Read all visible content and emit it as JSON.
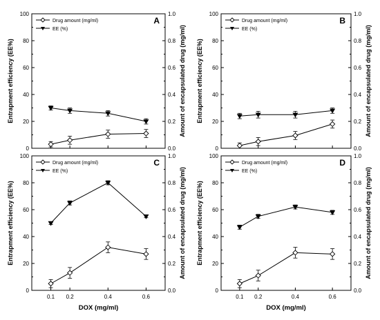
{
  "chart_data": [
    {
      "type": "line",
      "panel_label": "A",
      "x": [
        0.1,
        0.2,
        0.4,
        0.6
      ],
      "xlim": [
        0,
        0.7
      ],
      "ylim": [
        0,
        100
      ],
      "y2lim": [
        0,
        1.0
      ],
      "left_ticks": [
        "0",
        "20",
        "40",
        "60",
        "80",
        "100"
      ],
      "right_ticks": [
        "0.0",
        "0.2",
        "0.4",
        "0.6",
        "0.8",
        "1.0"
      ],
      "x_ticks": [],
      "ylabel": "Entrapment efficiency (EE%)",
      "y2label": "Amount of encapsulated drug (mg/ml)",
      "xlabel": "",
      "legend_placement": "top-left",
      "series": [
        {
          "name": "Drug amount (mg/ml)",
          "axis": "right",
          "marker": "open-diamond",
          "values": [
            0.03,
            0.06,
            0.105,
            0.11
          ],
          "errors": [
            0.02,
            0.03,
            0.03,
            0.03
          ]
        },
        {
          "name": "EE (%)",
          "axis": "left",
          "marker": "filled-triangle-down",
          "values": [
            30,
            28,
            26,
            20
          ],
          "errors": [
            1.5,
            2,
            2,
            2
          ]
        }
      ]
    },
    {
      "type": "line",
      "panel_label": "B",
      "x": [
        0.1,
        0.2,
        0.4,
        0.6
      ],
      "xlim": [
        0,
        0.7
      ],
      "ylim": [
        0,
        100
      ],
      "y2lim": [
        0,
        1.0
      ],
      "left_ticks": [
        "0",
        "20",
        "40",
        "60",
        "80",
        "100"
      ],
      "right_ticks": [
        "0.0",
        "0.2",
        "0.4",
        "0.6",
        "0.8",
        "1.0"
      ],
      "x_ticks": [],
      "ylabel": "Entrapment efficiency (EE%)",
      "y2label": "Amount of encapsulated drug (mg/ml)",
      "xlabel": "",
      "legend_placement": "top-left",
      "series": [
        {
          "name": "Drug amount (mg/ml)",
          "axis": "right",
          "marker": "open-diamond",
          "values": [
            0.02,
            0.05,
            0.095,
            0.18
          ],
          "errors": [
            0.02,
            0.03,
            0.03,
            0.03
          ]
        },
        {
          "name": "EE (%)",
          "axis": "left",
          "marker": "filled-triangle-down",
          "values": [
            24,
            25,
            25,
            28
          ],
          "errors": [
            2,
            2.5,
            2.5,
            2
          ]
        }
      ]
    },
    {
      "type": "line",
      "panel_label": "C",
      "x": [
        0.1,
        0.2,
        0.4,
        0.6
      ],
      "xlim": [
        0,
        0.7
      ],
      "ylim": [
        0,
        100
      ],
      "y2lim": [
        0,
        1.0
      ],
      "left_ticks": [
        "0",
        "20",
        "40",
        "60",
        "80",
        "100"
      ],
      "right_ticks": [
        "0.0",
        "0.2",
        "0.4",
        "0.6",
        "0.8",
        "1.0"
      ],
      "x_ticks": [
        "0.1",
        "0.2",
        "0.4",
        "0.6"
      ],
      "ylabel": "Entrapment efficiency (EE%)",
      "y2label": "Amount of encapsulated drug (mg/ml)",
      "xlabel": "DOX (mg/ml)",
      "legend_placement": "top-left",
      "series": [
        {
          "name": "Drug amount (mg/ml)",
          "axis": "right",
          "marker": "open-diamond",
          "values": [
            0.05,
            0.13,
            0.32,
            0.27
          ],
          "errors": [
            0.03,
            0.04,
            0.04,
            0.04
          ]
        },
        {
          "name": "EE (%)",
          "axis": "left",
          "marker": "filled-triangle-down",
          "values": [
            50,
            65,
            80,
            55
          ],
          "errors": [
            1,
            1.5,
            1.5,
            1
          ]
        }
      ]
    },
    {
      "type": "line",
      "panel_label": "D",
      "x": [
        0.1,
        0.2,
        0.4,
        0.6
      ],
      "xlim": [
        0,
        0.7
      ],
      "ylim": [
        0,
        100
      ],
      "y2lim": [
        0,
        1.0
      ],
      "left_ticks": [
        "0",
        "20",
        "40",
        "60",
        "80",
        "100"
      ],
      "right_ticks": [
        "0.0",
        "0.2",
        "0.4",
        "0.6",
        "0.8",
        "1.0"
      ],
      "x_ticks": [
        "0.1",
        "0.2",
        "0.4",
        "0.6"
      ],
      "ylabel": "Entrapment efficiency (EE%)",
      "y2label": "Amount of encapsulated drug (mg/ml)",
      "xlabel": "DOX (mg/ml)",
      "legend_placement": "top-left",
      "series": [
        {
          "name": "Drug amount (mg/ml)",
          "axis": "right",
          "marker": "open-diamond",
          "values": [
            0.05,
            0.11,
            0.28,
            0.27
          ],
          "errors": [
            0.03,
            0.04,
            0.04,
            0.04
          ]
        },
        {
          "name": "EE (%)",
          "axis": "left",
          "marker": "filled-triangle-down",
          "values": [
            47,
            55,
            62,
            58
          ],
          "errors": [
            1.5,
            1.5,
            1.5,
            1.5
          ]
        }
      ]
    }
  ]
}
